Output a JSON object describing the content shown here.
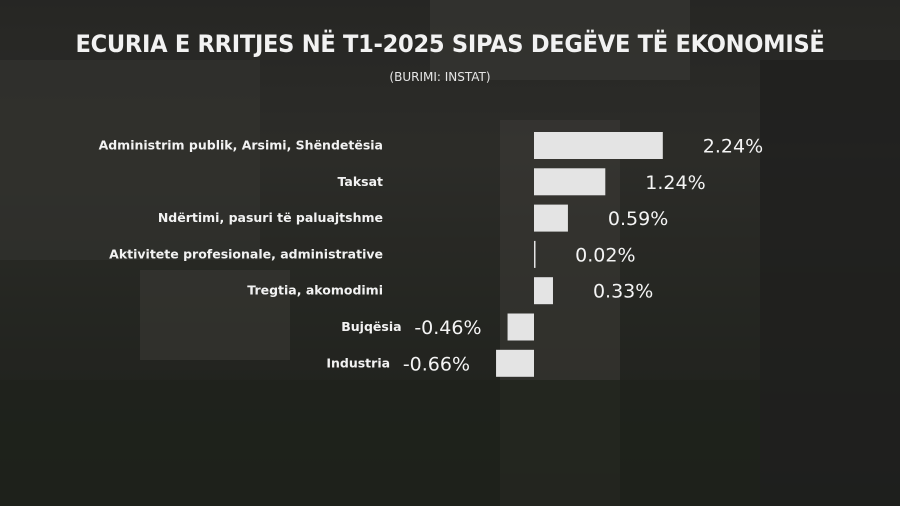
{
  "header": {
    "title": "ECURIA E RRITJES NË T1-2025 SIPAS DEGËVE TË EKONOMISË",
    "subtitle": "(BURIMI: INSTAT)"
  },
  "colors": {
    "bar": "#e4e4e4",
    "text": "#f2f2f2"
  },
  "chart_data": {
    "type": "bar",
    "orientation": "horizontal",
    "title": "ECURIA E RRITJES NË T1-2025 SIPAS DEGËVE TË EKONOMISË",
    "subtitle": "(BURIMI: INSTAT)",
    "categories": [
      "Administrim publik, Arsimi, Shëndetësia",
      "Taksat",
      "Ndërtimi, pasuri të paluajtshme",
      "Aktivitete profesionale, administrative",
      "Tregtia, akomodimi",
      "Bujqësia",
      "Industria"
    ],
    "values": [
      2.24,
      1.24,
      0.59,
      0.02,
      0.33,
      -0.46,
      -0.66
    ],
    "value_labels": [
      "2.24%",
      "1.24%",
      "0.59%",
      "0.02%",
      "0.33%",
      "-0.46%",
      "-0.66%"
    ],
    "grid": false,
    "legend": "none"
  }
}
